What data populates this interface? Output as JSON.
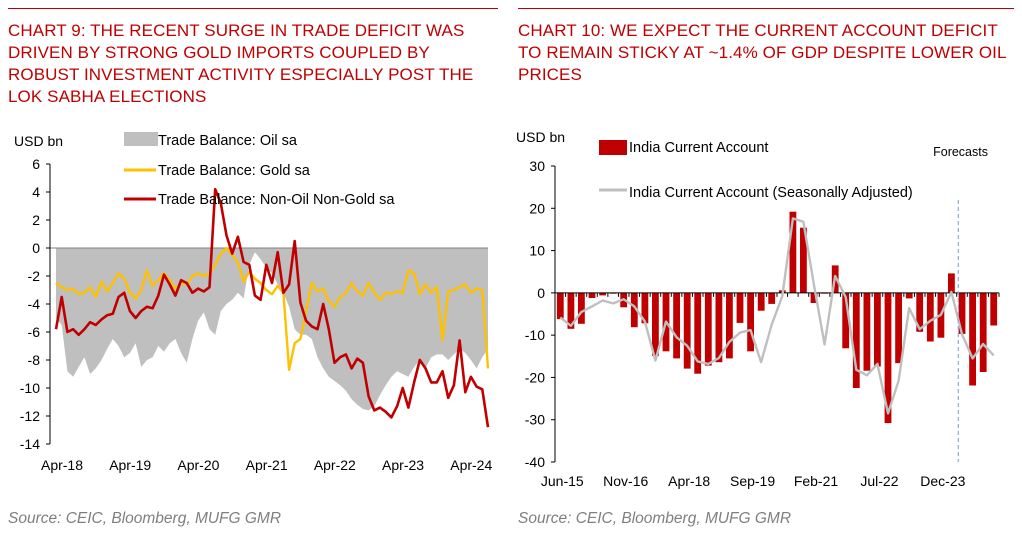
{
  "charts": {
    "left": {
      "title": "CHART 9: THE RECENT SURGE IN TRADE DEFICIT WAS DRIVEN BY STRONG GOLD IMPORTS COUPLED BY ROBUST INVESTMENT ACTIVITY ESPECIALLY POST THE LOK SABHA ELECTIONS",
      "source": "Source: CEIC, Bloomberg, MUFG GMR"
    },
    "right": {
      "title": "CHART 10: WE EXPECT THE CURRENT ACCOUNT DEFICIT TO REMAIN STICKY AT ~1.4% OF GDP DESPITE LOWER OIL PRICES",
      "source": "Source: CEIC, Bloomberg, MUFG GMR"
    }
  },
  "chart_data": [
    {
      "type": "area",
      "title": "CHART 9: THE RECENT SURGE IN TRADE DEFICIT WAS DRIVEN BY STRONG GOLD IMPORTS COUPLED BY ROBUST INVESTMENT ACTIVITY ESPECIALLY POST THE LOK SABHA ELECTIONS",
      "ylabel": "USD bn",
      "ylim": [
        -14,
        6
      ],
      "yticks": [
        6,
        4,
        2,
        0,
        -2,
        -4,
        -6,
        -8,
        -10,
        -12,
        -14
      ],
      "x_start": "2018-04",
      "x_end": "2024-07",
      "x_ticks": [
        "Apr-18",
        "Apr-19",
        "Apr-20",
        "Apr-21",
        "Apr-22",
        "Apr-23",
        "Apr-24"
      ],
      "grid": false,
      "legend": "top",
      "colors": {
        "oil": "#bfbfbf",
        "gold": "#ffc000",
        "nonoil": "#c00000"
      },
      "series": [
        {
          "name": "Trade Balance: Oil sa",
          "kind": "area",
          "values": [
            -5,
            -5.5,
            -8.8,
            -9.2,
            -8.5,
            -7.8,
            -9,
            -8.6,
            -8,
            -7.2,
            -6.5,
            -7,
            -7.8,
            -7.5,
            -6.8,
            -8.5,
            -8,
            -7.8,
            -7,
            -7.4,
            -6.8,
            -6.5,
            -7.5,
            -8.2,
            -6.5,
            -5.2,
            -4.6,
            -5.8,
            -6.2,
            -4.5,
            -4,
            -3.7,
            -3.2,
            -3.6,
            -1.2,
            -0.3,
            -0.8,
            -1.4,
            -1.8,
            -2.6,
            -3.2,
            -4.2,
            -5.8,
            -6.2,
            -6.2,
            -6.5,
            -7.8,
            -8.6,
            -9.2,
            -9.5,
            -9.8,
            -10.2,
            -10.8,
            -11.2,
            -11.5,
            -11.6,
            -11.3,
            -10.5,
            -9.8,
            -9.2,
            -8.8,
            -9,
            -9.2,
            -8.5,
            -8,
            -8.6,
            -7.8,
            -7.6,
            -7.6,
            -8,
            -7.6,
            -7.2,
            -7.5,
            -8,
            -8.6,
            -7.8,
            -7.2
          ]
        },
        {
          "name": "Trade Balance: Gold sa",
          "kind": "line",
          "values": [
            -2.5,
            -2.8,
            -3,
            -2.9,
            -3.3,
            -3.2,
            -2.8,
            -3.5,
            -2.4,
            -3.1,
            -2.5,
            -1.8,
            -2.2,
            -3.2,
            -3.6,
            -3,
            -1.6,
            -2.7,
            -2.3,
            -1.8,
            -2.3,
            -2.9,
            -2.5,
            -2.6,
            -2,
            -1.8,
            -2,
            -1.8,
            -1.2,
            -0.4,
            0,
            -0.5,
            -1,
            -2.4,
            -1.7,
            -2.2,
            -2.5,
            -3,
            -3.3,
            -2.7,
            -3.2,
            -8.7,
            -6.8,
            -6.5,
            -4.5,
            -2.5,
            -3.1,
            -2.9,
            -3.8,
            -4.2,
            -3.5,
            -3.2,
            -2.5,
            -3.1,
            -3.4,
            -2.5,
            -3.2,
            -3.7,
            -3.2,
            -3.3,
            -3.1,
            -3.2,
            -1.6,
            -1.8,
            -3.3,
            -2.6,
            -3.2,
            -2.8,
            -6.6,
            -3.1,
            -3,
            -2.8,
            -2.6,
            -3.2,
            -2.9,
            -3,
            -8.6
          ]
        },
        {
          "name": "Trade Balance: Non-Oil Non-Gold sa",
          "kind": "line",
          "values": [
            -5.8,
            -3.5,
            -6,
            -5.8,
            -6.2,
            -5.8,
            -5.3,
            -5.5,
            -5.1,
            -4.8,
            -4.7,
            -3.5,
            -3.2,
            -4.5,
            -5,
            -4.5,
            -4.2,
            -4.3,
            -3.4,
            -1.9,
            -2.6,
            -3.4,
            -2.3,
            -2.5,
            -3.2,
            -2.9,
            -3.1,
            -2.8,
            4.2,
            3.2,
            0.9,
            -0.4,
            0.8,
            -1,
            -1.2,
            -3.4,
            -3.7,
            -1.2,
            -2.5,
            -0.3,
            -3.2,
            -2.6,
            0.5,
            -3.9,
            -5.2,
            -5.6,
            -5.8,
            -4,
            -5.8,
            -8.2,
            -7.8,
            -7.6,
            -8.6,
            -7.9,
            -8.2,
            -10.6,
            -11.6,
            -11.4,
            -11.7,
            -12.1,
            -11.3,
            -10,
            -11.4,
            -9.6,
            -8,
            -8.6,
            -9.6,
            -9.6,
            -8.8,
            -10.7,
            -9.8,
            -6.6,
            -10.3,
            -9.2,
            -9.9,
            -10.1,
            -12.8
          ]
        }
      ]
    },
    {
      "type": "bar",
      "title": "CHART 10: WE EXPECT THE CURRENT ACCOUNT DEFICIT TO REMAIN STICKY AT ~1.4% OF GDP DESPITE LOWER OIL PRICES",
      "ylabel": "USD bn",
      "ylim": [
        -40,
        30
      ],
      "yticks": [
        30,
        20,
        10,
        0,
        -10,
        -20,
        -30,
        -40
      ],
      "x_start": "Jun-15",
      "frequency": "quarterly",
      "x_ticks": [
        "Jun-15",
        "Nov-16",
        "Apr-18",
        "Sep-19",
        "Feb-21",
        "Jul-22",
        "Dec-23"
      ],
      "annotation": "Forecasts",
      "forecast_start": "Sep-24",
      "grid": false,
      "legend": "top",
      "colors": {
        "bars": "#c00000",
        "sa": "#bfbfbf"
      },
      "series": [
        {
          "name": "India Current Account",
          "kind": "bar",
          "values": [
            -6.2,
            -8.5,
            -7.3,
            -1.2,
            -0.6,
            -0.2,
            -3.4,
            -8.1,
            -7.2,
            -14.9,
            -13.8,
            -15.5,
            -17.9,
            -19.1,
            -17.2,
            -16.4,
            -15.5,
            -7.1,
            -13.8,
            -4.2,
            -2.6,
            0.6,
            19.2,
            15.4,
            -2.4,
            -0.2,
            6.5,
            -13.1,
            -22.5,
            -18.4,
            -17.4,
            -30.8,
            -16.6,
            -1.3,
            -9.2,
            -11.5,
            -10.6,
            4.6,
            -9.7,
            -21.9,
            -18.7,
            -7.7
          ]
        },
        {
          "name": "India Current Account (Seasonally Adjusted)",
          "kind": "line",
          "values": [
            -5.8,
            -7.8,
            -4.5,
            -3.2,
            -1.8,
            -2.5,
            -1.5,
            -3.2,
            -6.8,
            -16,
            -6.8,
            -10.5,
            -12.5,
            -16.2,
            -16.8,
            -15.4,
            -11.6,
            -9.4,
            -8.8,
            -16.4,
            -7.5,
            -0.8,
            17.6,
            16.8,
            1.8,
            -12.2,
            4,
            -1,
            -18.2,
            -19.5,
            -16.8,
            -28.5,
            -20.8,
            -3.6,
            -8.6,
            -6.6,
            -5.2,
            0.2,
            -9.8,
            -15.5,
            -12.1,
            -14.8
          ]
        }
      ]
    }
  ]
}
